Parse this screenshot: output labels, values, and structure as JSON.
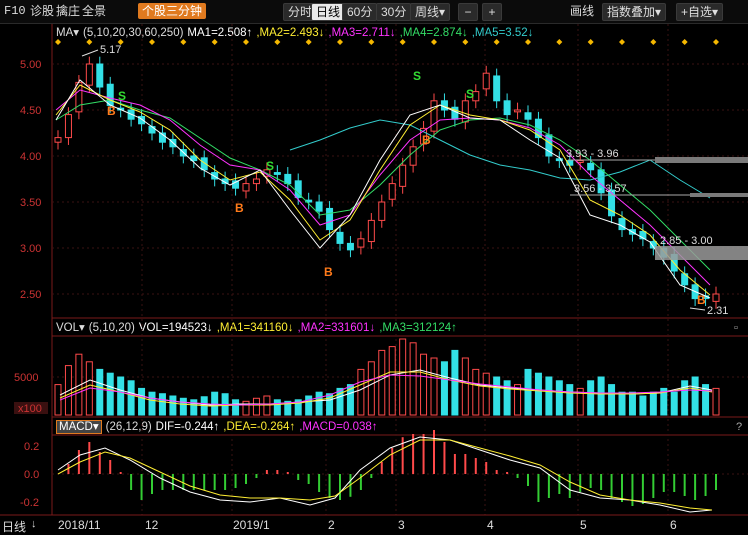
{
  "toolbar": {
    "f10": "F10",
    "tabs": [
      "诊股",
      "擒庄",
      "全景"
    ],
    "mode_active": "个股三分钟",
    "periods": [
      "分时",
      "日线",
      "60分",
      "30分",
      "周线▾"
    ],
    "active_period": "日线",
    "zoom_minus": "−",
    "zoom_plus": "+",
    "draw": "画线",
    "overlay": "指数叠加▾",
    "watchlist": "+自选▾"
  },
  "price_header": {
    "ma_label": "MA▾",
    "ma_params": "(5,10,20,30,60,250)",
    "ma1": "MA1=2.508↑",
    "ma2": ",MA2=2.493↓",
    "ma3": ",MA3=2.711↓",
    "ma4": ",MA4=2.874↓",
    "ma5": ",MA5=3.52↓"
  },
  "volume_header": {
    "label": "VOL▾",
    "params": "(5,10,20)",
    "vol": "VOL=194523↓",
    "ma1": ",MA1=341160↓",
    "ma2": ",MA2=331601↓",
    "ma3": ",MA3=312124↑"
  },
  "macd_header": {
    "label": "MACD▾",
    "params": "(26,12,9)",
    "dif": "DIF=-0.244↑",
    "dea": ",DEA=-0.264↑",
    "macd": ",MACD=0.038↑"
  },
  "price_axis": [
    "5.00",
    "4.50",
    "4.00",
    "3.50",
    "3.00",
    "2.50"
  ],
  "volume_axis": [
    "5000",
    "x100"
  ],
  "macd_axis": [
    "0.2",
    "0.0",
    "-0.2"
  ],
  "x_axis": {
    "period_label": "日线",
    "labels": [
      "2018/11",
      "12",
      "2019/1",
      "2",
      "3",
      "4",
      "5",
      "6"
    ]
  },
  "annotations": {
    "high": "5.17",
    "low": "2.31",
    "zone1": "3.93 - 3.96",
    "zone2": "3.56 - 3.57",
    "zone3": "2.85 - 3.00"
  },
  "signals": {
    "buy": "B",
    "sell": "S"
  },
  "colors": {
    "up": "#ff4a4a",
    "down": "#33e0e6",
    "ma1": "#ffffff",
    "ma2": "#ffee33",
    "ma3": "#ff33ff",
    "ma4": "#00ff66",
    "ma5": "#33cccc",
    "accent": "#e07a1f"
  },
  "chart_data": {
    "type": "candlestick",
    "price_ylim": [
      2.3,
      5.25
    ],
    "x_months": [
      "2018/11",
      "12",
      "2019/1",
      "2",
      "3",
      "4",
      "5",
      "6"
    ],
    "close_series": [
      4.2,
      4.45,
      4.8,
      5.0,
      4.75,
      4.55,
      4.5,
      4.4,
      4.35,
      4.25,
      4.15,
      4.1,
      4.0,
      3.95,
      3.85,
      3.75,
      3.7,
      3.65,
      3.7,
      3.75,
      3.85,
      3.8,
      3.7,
      3.55,
      3.5,
      3.4,
      3.2,
      3.05,
      2.98,
      3.1,
      3.3,
      3.5,
      3.7,
      3.9,
      4.1,
      4.3,
      4.6,
      4.5,
      4.4,
      4.6,
      4.7,
      4.9,
      4.6,
      4.45,
      4.5,
      4.4,
      4.2,
      4.0,
      3.95,
      3.9,
      3.95,
      3.85,
      3.6,
      3.35,
      3.2,
      3.15,
      3.1,
      3.0,
      2.9,
      2.75,
      2.6,
      2.45,
      2.45,
      2.5
    ],
    "volume_series": [
      40,
      65,
      80,
      70,
      60,
      55,
      50,
      45,
      35,
      30,
      28,
      25,
      22,
      20,
      24,
      30,
      28,
      20,
      18,
      22,
      25,
      20,
      18,
      20,
      25,
      30,
      28,
      35,
      40,
      60,
      70,
      85,
      90,
      100,
      95,
      80,
      75,
      70,
      85,
      75,
      60,
      55,
      50,
      45,
      40,
      60,
      55,
      50,
      45,
      40,
      35,
      45,
      50,
      40,
      30,
      30,
      25,
      30,
      35,
      30,
      45,
      50,
      40,
      35
    ],
    "macd_ylim": [
      -0.3,
      0.3
    ]
  }
}
